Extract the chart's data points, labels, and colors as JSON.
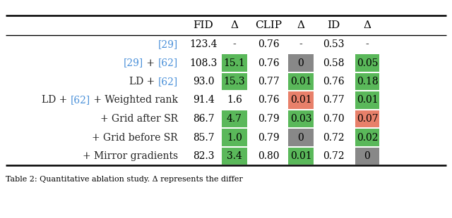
{
  "col_headers": [
    "FID",
    "Δ",
    "CLIP",
    "Δ",
    "ID",
    "Δ"
  ],
  "rows": [
    {
      "label_parts": [
        {
          "text": "[29]",
          "color": "#4a90d9"
        }
      ],
      "fid": "123.4",
      "dfid": "-",
      "clip": "0.76",
      "dclip": "-",
      "id": "0.53",
      "did": "-"
    },
    {
      "label_parts": [
        {
          "text": "[29]",
          "color": "#4a90d9"
        },
        {
          "text": " + ",
          "color": "#222222"
        },
        {
          "text": "[62]",
          "color": "#4a90d9"
        }
      ],
      "fid": "108.3",
      "dfid": "15.1",
      "clip": "0.76",
      "dclip": "0",
      "id": "0.58",
      "did": "0.05"
    },
    {
      "label_parts": [
        {
          "text": "LD + ",
          "color": "#222222"
        },
        {
          "text": "[62]",
          "color": "#4a90d9"
        }
      ],
      "fid": "93.0",
      "dfid": "15.3",
      "clip": "0.77",
      "dclip": "0.01",
      "id": "0.76",
      "did": "0.18"
    },
    {
      "label_parts": [
        {
          "text": "LD + ",
          "color": "#222222"
        },
        {
          "text": "[62]",
          "color": "#4a90d9"
        },
        {
          "text": " + Weighted rank",
          "color": "#222222"
        }
      ],
      "fid": "91.4",
      "dfid": "1.6",
      "clip": "0.76",
      "dclip": "0.01",
      "id": "0.77",
      "did": "0.01"
    },
    {
      "label_parts": [
        {
          "text": "+ Grid after SR",
          "color": "#222222"
        }
      ],
      "fid": "86.7",
      "dfid": "4.7",
      "clip": "0.79",
      "dclip": "0.03",
      "id": "0.70",
      "did": "0.07"
    },
    {
      "label_parts": [
        {
          "text": "+ Grid before SR",
          "color": "#222222"
        }
      ],
      "fid": "85.7",
      "dfid": "1.0",
      "clip": "0.79",
      "dclip": "0",
      "id": "0.72",
      "did": "0.02"
    },
    {
      "label_parts": [
        {
          "text": "+ Mirror gradients",
          "color": "#222222"
        }
      ],
      "fid": "82.3",
      "dfid": "3.4",
      "clip": "0.80",
      "dclip": "0.01",
      "id": "0.72",
      "did": "0"
    }
  ],
  "cell_colors": [
    [
      "none",
      "none",
      "none",
      "none",
      "none",
      "none"
    ],
    [
      "green",
      "gray",
      "none",
      "none",
      "none",
      "green"
    ],
    [
      "green",
      "green",
      "none",
      "none",
      "none",
      "green"
    ],
    [
      "none",
      "red",
      "none",
      "none",
      "none",
      "green"
    ],
    [
      "green",
      "green",
      "none",
      "none",
      "none",
      "red"
    ],
    [
      "green",
      "gray",
      "none",
      "none",
      "none",
      "green"
    ],
    [
      "green",
      "green",
      "none",
      "none",
      "none",
      "gray"
    ]
  ],
  "color_map": {
    "green": "#5ab85a",
    "gray": "#888888",
    "red": "#e8806a",
    "none": null
  },
  "caption": "Table 2: Quantitative ablation study. Δ represents the differ",
  "fontsize_header": 11,
  "fontsize_body": 10,
  "fontsize_caption": 8,
  "line_color": "#000000",
  "bg_color": "#ffffff"
}
